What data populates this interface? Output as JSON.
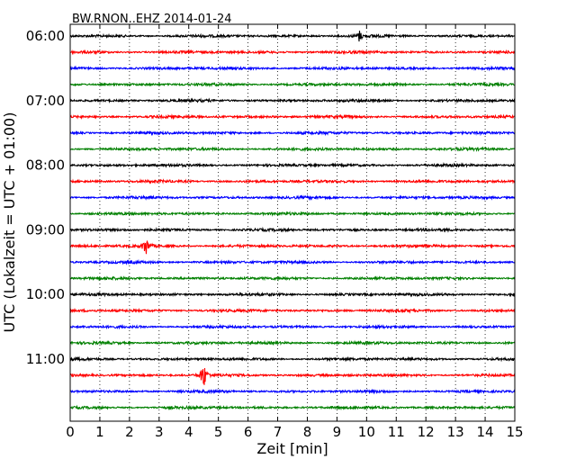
{
  "chart_data": {
    "type": "line",
    "title": "BW.RNON..EHZ 2014-01-24",
    "xlabel": "Zeit  [min]",
    "ylabel": "UTC (Lokalzeit = UTC + 01:00)",
    "xlim": [
      0,
      15
    ],
    "x_ticks": [
      "0",
      "1",
      "2",
      "3",
      "4",
      "5",
      "6",
      "7",
      "8",
      "9",
      "10",
      "11",
      "12",
      "13",
      "14",
      "15"
    ],
    "y_ticks": [
      "06:00",
      "07:00",
      "08:00",
      "09:00",
      "10:00",
      "11:00"
    ],
    "vertical_grid": "dotted",
    "line_colors": [
      "#000000",
      "#ff0000",
      "#0000ff",
      "#008000"
    ],
    "traces": [
      {
        "start": "06:00",
        "color": "#000000",
        "events": [
          {
            "x": 9.75,
            "amplitude": 6
          }
        ]
      },
      {
        "start": "06:15",
        "color": "#ff0000",
        "events": []
      },
      {
        "start": "06:30",
        "color": "#0000ff",
        "events": []
      },
      {
        "start": "06:45",
        "color": "#008000",
        "events": []
      },
      {
        "start": "07:00",
        "color": "#000000",
        "events": []
      },
      {
        "start": "07:15",
        "color": "#ff0000",
        "events": []
      },
      {
        "start": "07:30",
        "color": "#0000ff",
        "events": []
      },
      {
        "start": "07:45",
        "color": "#008000",
        "events": []
      },
      {
        "start": "08:00",
        "color": "#000000",
        "events": []
      },
      {
        "start": "08:15",
        "color": "#ff0000",
        "events": []
      },
      {
        "start": "08:30",
        "color": "#0000ff",
        "events": []
      },
      {
        "start": "08:45",
        "color": "#008000",
        "events": []
      },
      {
        "start": "09:00",
        "color": "#000000",
        "events": []
      },
      {
        "start": "09:15",
        "color": "#ff0000",
        "events": [
          {
            "x": 2.55,
            "amplitude": 11
          }
        ]
      },
      {
        "start": "09:30",
        "color": "#0000ff",
        "events": []
      },
      {
        "start": "09:45",
        "color": "#008000",
        "events": []
      },
      {
        "start": "10:00",
        "color": "#000000",
        "events": []
      },
      {
        "start": "10:15",
        "color": "#ff0000",
        "events": []
      },
      {
        "start": "10:30",
        "color": "#0000ff",
        "events": []
      },
      {
        "start": "10:45",
        "color": "#008000",
        "events": []
      },
      {
        "start": "11:00",
        "color": "#000000",
        "events": []
      },
      {
        "start": "11:15",
        "color": "#ff0000",
        "events": [
          {
            "x": 4.5,
            "amplitude": 16
          }
        ]
      },
      {
        "start": "11:30",
        "color": "#0000ff",
        "events": []
      },
      {
        "start": "11:45",
        "color": "#008000",
        "events": []
      }
    ]
  }
}
